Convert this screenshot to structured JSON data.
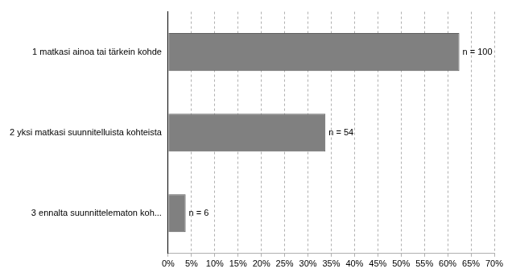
{
  "chart_data": {
    "type": "bar",
    "orientation": "horizontal",
    "categories": [
      "1 matkasi ainoa tai tärkein kohde",
      "2 yksi matkasi suunnitelluista kohteista",
      "3 ennalta suunnittelematon koh..."
    ],
    "values": [
      62.5,
      33.75,
      3.75
    ],
    "count_labels": [
      "n = 100",
      "n = 54",
      "n = 6"
    ],
    "color": "#808080",
    "xlim": [
      0,
      70
    ],
    "xticks": [
      {
        "value": 0,
        "label": "0%"
      },
      {
        "value": 5,
        "label": "5%"
      },
      {
        "value": 10,
        "label": "10%"
      },
      {
        "value": 15,
        "label": "15%"
      },
      {
        "value": 20,
        "label": "20%"
      },
      {
        "value": 25,
        "label": "25%"
      },
      {
        "value": 30,
        "label": "30%"
      },
      {
        "value": 35,
        "label": "35%"
      },
      {
        "value": 40,
        "label": "40%"
      },
      {
        "value": 45,
        "label": "45%"
      },
      {
        "value": 50,
        "label": "50%"
      },
      {
        "value": 55,
        "label": "55%"
      },
      {
        "value": 60,
        "label": "60%"
      },
      {
        "value": 65,
        "label": "65%"
      },
      {
        "value": 70,
        "label": "70%"
      }
    ],
    "grid": true
  }
}
